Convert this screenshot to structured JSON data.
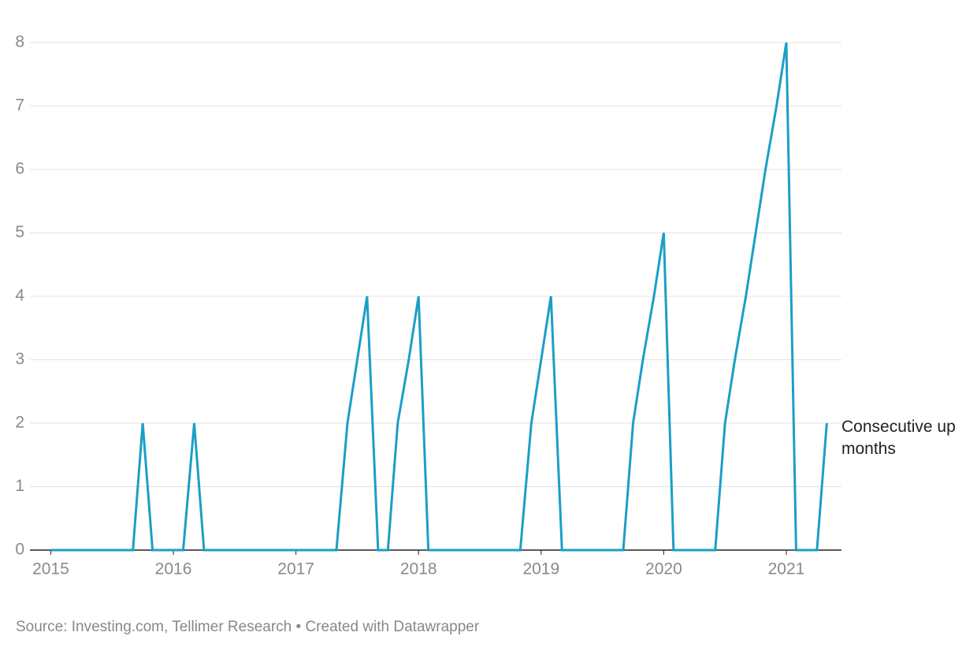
{
  "chart_data": {
    "type": "line",
    "x": [
      2015,
      2015.08,
      2015.17,
      2015.25,
      2015.33,
      2015.42,
      2015.5,
      2015.58,
      2015.67,
      2015.75,
      2015.83,
      2015.92,
      2016,
      2016.08,
      2016.17,
      2016.25,
      2016.33,
      2016.42,
      2016.5,
      2016.58,
      2016.67,
      2016.75,
      2016.83,
      2016.92,
      2017,
      2017.08,
      2017.17,
      2017.25,
      2017.33,
      2017.42,
      2017.5,
      2017.58,
      2017.67,
      2017.75,
      2017.83,
      2017.92,
      2018,
      2018.08,
      2018.17,
      2018.25,
      2018.33,
      2018.42,
      2018.5,
      2018.58,
      2018.67,
      2018.75,
      2018.83,
      2018.92,
      2019,
      2019.08,
      2019.17,
      2019.25,
      2019.33,
      2019.42,
      2019.5,
      2019.58,
      2019.67,
      2019.75,
      2019.83,
      2019.92,
      2020,
      2020.08,
      2020.17,
      2020.25,
      2020.33,
      2020.42,
      2020.5,
      2020.58,
      2020.67,
      2020.75,
      2020.83,
      2020.92,
      2021,
      2021.08,
      2021.17,
      2021.25,
      2021.33
    ],
    "series": [
      {
        "name": "Consecutive up months",
        "color": "#1a9fc7",
        "values": [
          0,
          0,
          0,
          0,
          0,
          0,
          0,
          0,
          0,
          2,
          0,
          0,
          0,
          0,
          2,
          0,
          0,
          0,
          0,
          0,
          0,
          0,
          0,
          0,
          0,
          0,
          0,
          0,
          0,
          2,
          3,
          4,
          0,
          0,
          2,
          3,
          4,
          0,
          0,
          0,
          0,
          0,
          0,
          0,
          0,
          0,
          0,
          2,
          3,
          4,
          0,
          0,
          0,
          0,
          0,
          0,
          0,
          2,
          3,
          4,
          5,
          0,
          0,
          0,
          0,
          0,
          2,
          3,
          4,
          5,
          6,
          7,
          8,
          0,
          0,
          0,
          2
        ]
      }
    ],
    "xlim": [
      2014.83,
      2021.45
    ],
    "xticks": [
      2015,
      2016,
      2017,
      2018,
      2019,
      2020,
      2021
    ],
    "ylim": [
      0,
      8
    ],
    "yticks": [
      0,
      1,
      2,
      3,
      4,
      5,
      6,
      7,
      8
    ],
    "grid": true,
    "source": "Source: Investing.com, Tellimer Research • Created with Datawrapper"
  }
}
